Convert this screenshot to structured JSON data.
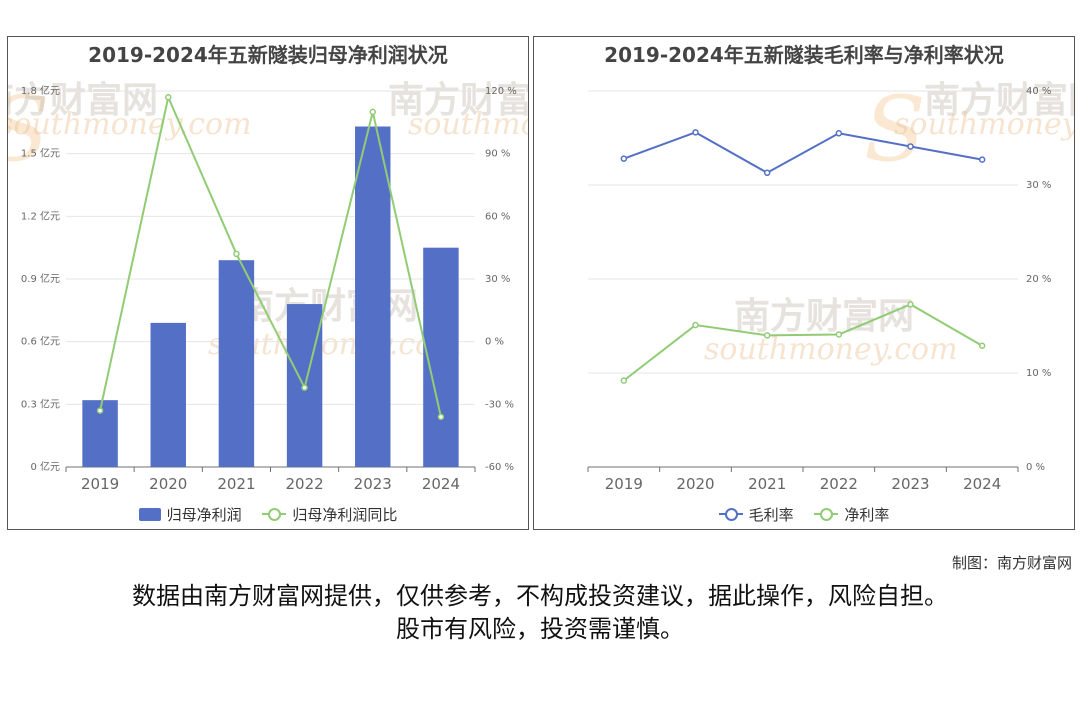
{
  "left_chart": {
    "title": "2019-2024年五新隧装归母净利润状况",
    "legend": [
      "归母净利润",
      "归母净利润同比"
    ]
  },
  "right_chart": {
    "title": "2019-2024年五新隧装毛利率与净利率状况",
    "legend": [
      "毛利率",
      "净利率"
    ]
  },
  "watermark": {
    "brand": "南方财富网",
    "url": "southmoney.com"
  },
  "credit": "制图：南方财富网",
  "disclaimer": [
    "数据由南方财富网提供，仅供参考，不构成投资建议，据此操作，风险自担。",
    "股市有风险，投资需谨慎。"
  ],
  "colors": {
    "bar": "#5470c6",
    "line_green": "#91cc75",
    "line_blue": "#5470c6"
  },
  "chart_data": [
    {
      "type": "bar",
      "title": "2019-2024年五新隧装归母净利润状况",
      "categories": [
        "2019",
        "2020",
        "2021",
        "2022",
        "2023",
        "2024"
      ],
      "series": [
        {
          "name": "归母净利润",
          "type": "bar",
          "axis": "left",
          "values": [
            0.32,
            0.69,
            0.99,
            0.78,
            1.63,
            1.05
          ]
        },
        {
          "name": "归母净利润同比",
          "type": "line",
          "axis": "right",
          "values": [
            -33,
            117,
            42,
            -22,
            110,
            -36
          ]
        }
      ],
      "y_left": {
        "min": 0,
        "max": 1.8,
        "ticks": [
          "0 亿元",
          "0.3 亿元",
          "0.6 亿元",
          "0.9 亿元",
          "1.2 亿元",
          "1.5 亿元",
          "1.8 亿元"
        ]
      },
      "y_right": {
        "min": -60,
        "max": 120,
        "ticks": [
          "-60 %",
          "-30 %",
          "0 %",
          "30 %",
          "60 %",
          "90 %",
          "120 %"
        ]
      },
      "grid": true,
      "legend_position": "bottom"
    },
    {
      "type": "line",
      "title": "2019-2024年五新隧装毛利率与净利率状况",
      "categories": [
        "2019",
        "2020",
        "2021",
        "2022",
        "2023",
        "2024"
      ],
      "series": [
        {
          "name": "毛利率",
          "values": [
            32.8,
            35.6,
            31.3,
            35.5,
            34.1,
            32.7
          ]
        },
        {
          "name": "净利率",
          "values": [
            9.2,
            15.1,
            14.0,
            14.1,
            17.3,
            12.9
          ]
        }
      ],
      "y_right": {
        "min": 0,
        "max": 40,
        "ticks": [
          "0 %",
          "10 %",
          "20 %",
          "30 %",
          "40 %"
        ]
      },
      "grid": true,
      "legend_position": "bottom"
    }
  ]
}
